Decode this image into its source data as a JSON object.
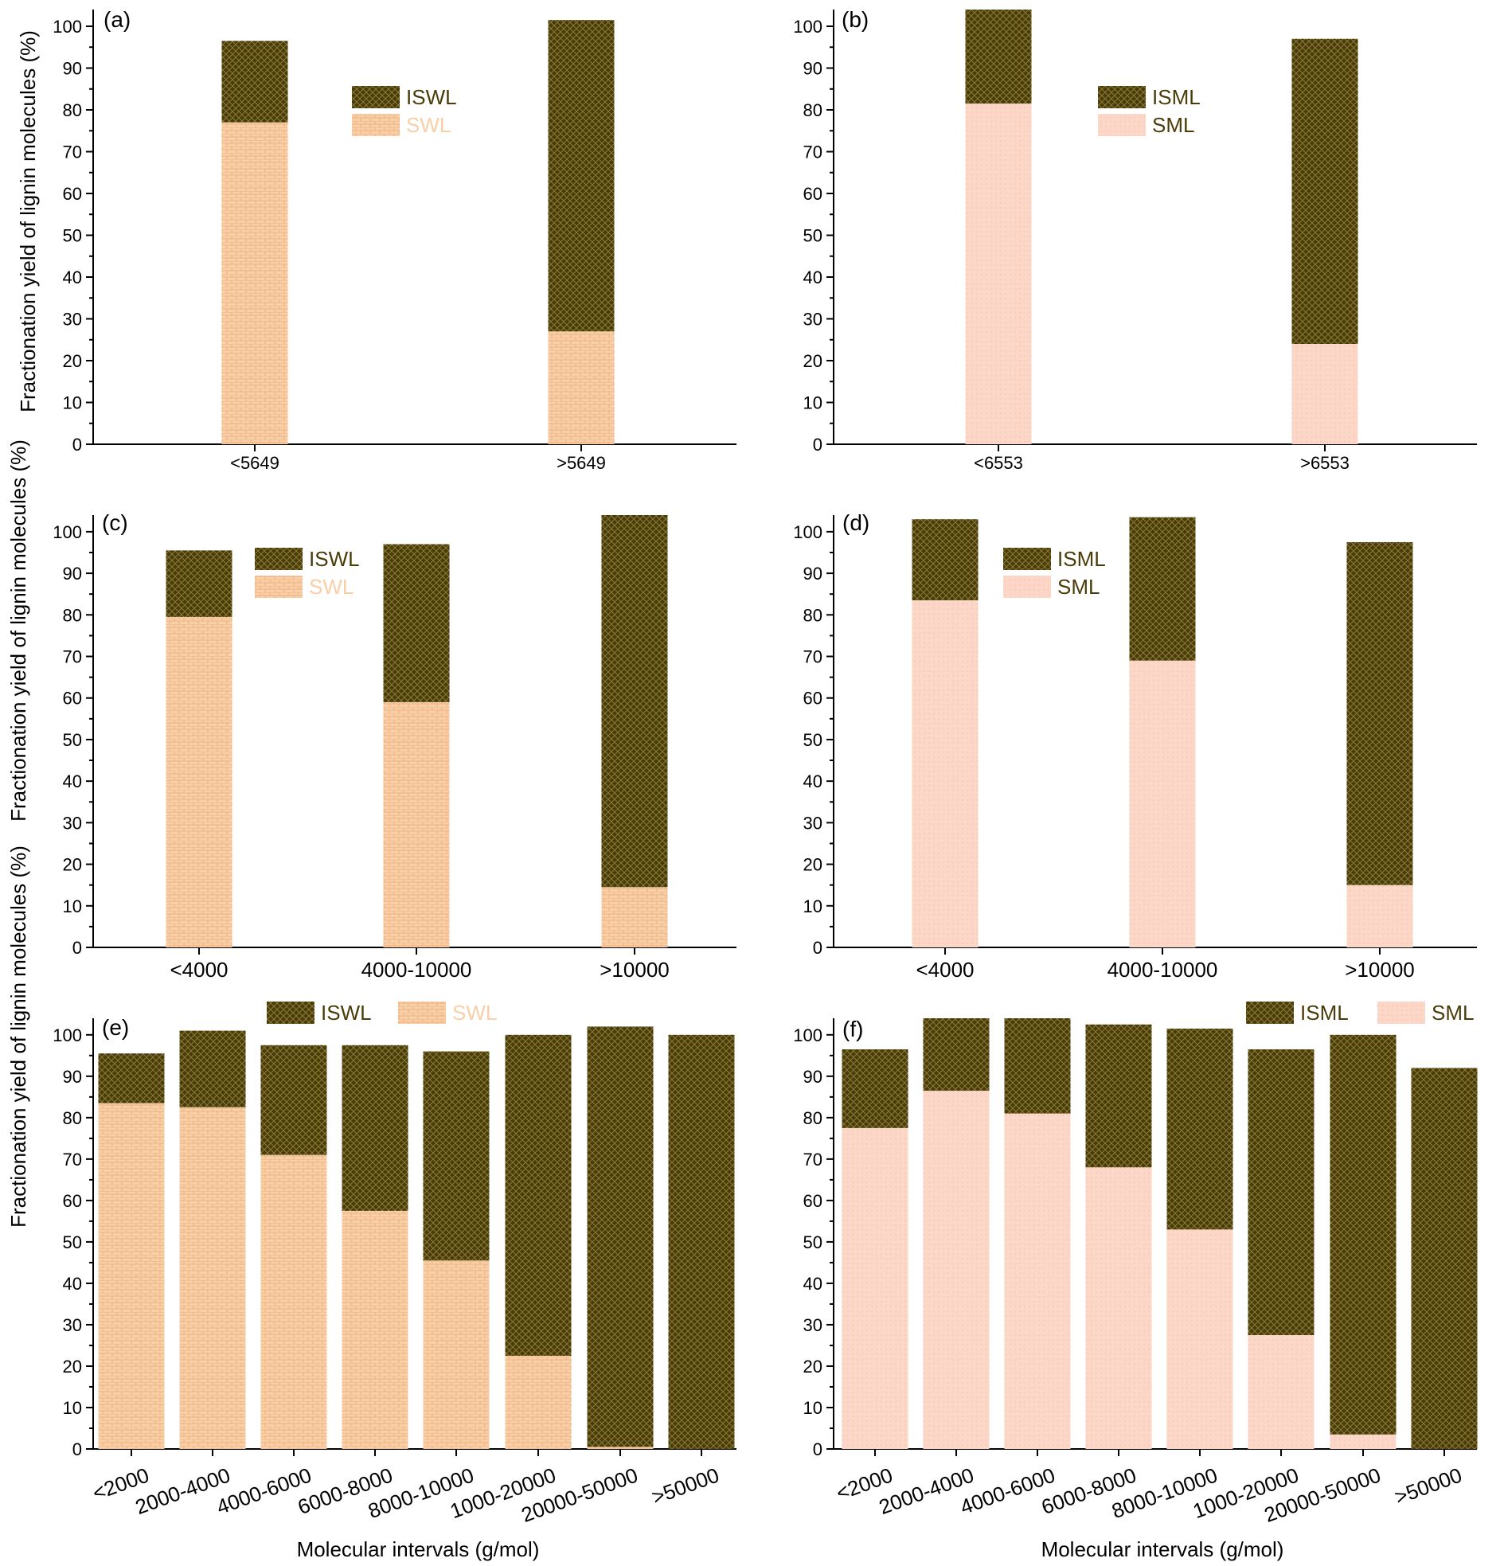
{
  "axis_titles": {
    "ylabel": "Fractionation yield of lignin molecules (%)",
    "xlabel": "Molecular intervals (g/mol)"
  },
  "colors": {
    "dark": "#4a3c08",
    "dark_pattern": "#8a7a3a",
    "swl": "#f8cfa6",
    "swl_pattern": "#eeb282",
    "sml": "#fcd6c6",
    "sml_pattern": "#f5c1ad"
  },
  "chart_data": [
    {
      "id": "a",
      "type": "bar",
      "stacked": true,
      "panel_label": "(a)",
      "categories": [
        "<5649",
        ">5649"
      ],
      "ylim": [
        0,
        104
      ],
      "yticks": [
        0,
        10,
        20,
        30,
        40,
        50,
        60,
        70,
        80,
        90,
        100
      ],
      "series": [
        {
          "name": "SWL",
          "values": [
            77,
            27
          ]
        },
        {
          "name": "ISWL",
          "values": [
            19.5,
            74.5
          ]
        }
      ],
      "legend": [
        "ISWL",
        "SWL"
      ],
      "xlabel": "",
      "ylabel": "Fractionation yield of lignin molecules (%)"
    },
    {
      "id": "b",
      "type": "bar",
      "stacked": true,
      "panel_label": "(b)",
      "categories": [
        "<6553",
        ">6553"
      ],
      "ylim": [
        0,
        104
      ],
      "yticks": [
        0,
        10,
        20,
        30,
        40,
        50,
        60,
        70,
        80,
        90,
        100
      ],
      "series": [
        {
          "name": "SML",
          "values": [
            81.5,
            24
          ]
        },
        {
          "name": "ISML",
          "values": [
            22.5,
            73
          ]
        }
      ],
      "legend": [
        "ISML",
        "SML"
      ],
      "xlabel": "",
      "ylabel": ""
    },
    {
      "id": "c",
      "type": "bar",
      "stacked": true,
      "panel_label": "(c)",
      "categories": [
        "<4000",
        "4000-10000",
        ">10000"
      ],
      "ylim": [
        0,
        104
      ],
      "yticks": [
        0,
        10,
        20,
        30,
        40,
        50,
        60,
        70,
        80,
        90,
        100
      ],
      "series": [
        {
          "name": "SWL",
          "values": [
            79.5,
            59,
            14.5
          ]
        },
        {
          "name": "ISWL",
          "values": [
            16,
            38,
            89.5
          ]
        }
      ],
      "legend": [
        "ISWL",
        "SWL"
      ],
      "xlabel": "",
      "ylabel": "Fractionation yield of lignin molecules (%)"
    },
    {
      "id": "d",
      "type": "bar",
      "stacked": true,
      "panel_label": "(d)",
      "categories": [
        "<4000",
        "4000-10000",
        ">10000"
      ],
      "ylim": [
        0,
        104
      ],
      "yticks": [
        0,
        10,
        20,
        30,
        40,
        50,
        60,
        70,
        80,
        90,
        100
      ],
      "series": [
        {
          "name": "SML",
          "values": [
            83.5,
            69,
            15
          ]
        },
        {
          "name": "ISML",
          "values": [
            19.5,
            34.5,
            82.5
          ]
        }
      ],
      "legend": [
        "ISML",
        "SML"
      ],
      "xlabel": "",
      "ylabel": ""
    },
    {
      "id": "e",
      "type": "bar",
      "stacked": true,
      "panel_label": "(e)",
      "categories": [
        "<2000",
        "2000-4000",
        "4000-6000",
        "6000-8000",
        "8000-10000",
        "1000-20000",
        "20000-50000",
        ">50000"
      ],
      "ylim": [
        0,
        104
      ],
      "yticks": [
        0,
        10,
        20,
        30,
        40,
        50,
        60,
        70,
        80,
        90,
        100
      ],
      "series": [
        {
          "name": "SWL",
          "values": [
            83.5,
            82.5,
            71,
            57.5,
            45.5,
            22.5,
            0.5,
            0
          ]
        },
        {
          "name": "ISWL",
          "values": [
            12,
            18.5,
            26.5,
            40,
            50.5,
            77.5,
            101.5,
            100
          ]
        }
      ],
      "legend": [
        "ISWL",
        "SWL"
      ],
      "xlabel": "Molecular intervals (g/mol)",
      "ylabel": "Fractionation yield of lignin molecules (%)"
    },
    {
      "id": "f",
      "type": "bar",
      "stacked": true,
      "panel_label": "(f)",
      "categories": [
        "<2000",
        "2000-4000",
        "4000-6000",
        "6000-8000",
        "8000-10000",
        "1000-20000",
        "20000-50000",
        ">50000"
      ],
      "ylim": [
        0,
        104
      ],
      "yticks": [
        0,
        10,
        20,
        30,
        40,
        50,
        60,
        70,
        80,
        90,
        100
      ],
      "series": [
        {
          "name": "SML",
          "values": [
            77.5,
            86.5,
            81,
            68,
            53,
            27.5,
            3.5,
            0
          ]
        },
        {
          "name": "ISML",
          "values": [
            19,
            17.5,
            23,
            34.5,
            48.5,
            69,
            96.5,
            92
          ]
        }
      ],
      "legend": [
        "ISML",
        "SML"
      ],
      "xlabel": "Molecular intervals (g/mol)",
      "ylabel": ""
    }
  ]
}
